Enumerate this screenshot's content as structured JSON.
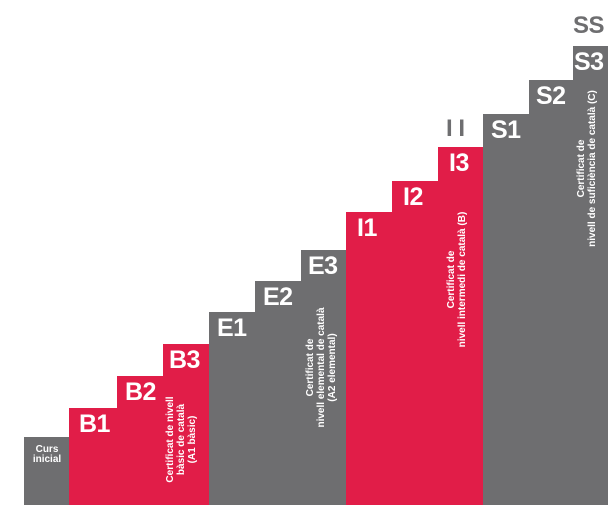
{
  "steps": {
    "curs": "Curs\ninicial",
    "b1": "B1",
    "b2": "B2",
    "b3": "B3",
    "cert_basic": "Certificat de nivell\nbàsic de català\n(A1 bàsic)",
    "e1": "E1",
    "e2": "E2",
    "e3": "E3",
    "cert_elemental": "Certificat de\nnivell elemental de català\n(A2 elemental)",
    "i1": "I1",
    "i2": "I2",
    "i3": "I3",
    "cert_intermedi": "Certificat de\nnivell intermedi de català (B)",
    "ii": "I I",
    "s1": "S1",
    "s2": "S2",
    "s3": "S3",
    "ss": "SS",
    "cert_suficiencia": "Certificat de\nnivell de suficiència de català (C)"
  },
  "colors": {
    "gray": "#6e6e70",
    "red": "#e11d48",
    "white": "#ffffff"
  }
}
